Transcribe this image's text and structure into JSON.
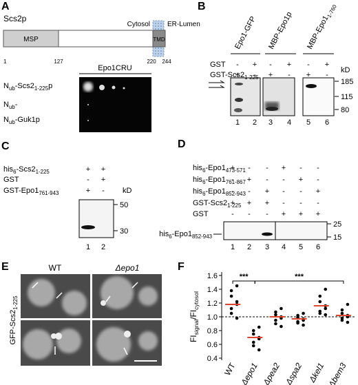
{
  "panels": {
    "A": {
      "letter": "A",
      "protein": "Scs2p",
      "domains": {
        "msp": "MSP",
        "tmd": "TMD"
      },
      "regions": [
        "Cytosol",
        "ER-Lumen"
      ],
      "positions": [
        "1",
        "127",
        "220",
        "244"
      ],
      "assay": "Epo1CRU",
      "rows": [
        [
          "N",
          "ub",
          "-Scs2",
          "1-225",
          "p"
        ],
        [
          "N",
          "ub",
          "-"
        ],
        [
          "N",
          "ub",
          "-Guk1p"
        ]
      ]
    },
    "B": {
      "letter": "B",
      "columns": [
        [
          "Epo1-GFP"
        ],
        [
          "MBP-Epo1p"
        ],
        [
          "MBP-Epo1",
          "1-760"
        ]
      ],
      "rows": [
        [
          "GST"
        ],
        [
          "GST-Scs2",
          "1-225"
        ]
      ],
      "signs": [
        [
          "-",
          "+",
          "-",
          "+",
          "-",
          "+"
        ],
        [
          "+",
          "-",
          "+",
          "-",
          "+",
          "-"
        ]
      ],
      "unit": "kD",
      "markers": [
        "185",
        "115",
        "80"
      ],
      "lanes": [
        "1",
        "2",
        "3",
        "4",
        "5",
        "6"
      ]
    },
    "C": {
      "letter": "C",
      "rows": [
        [
          "his",
          "6",
          "-Scs2",
          "1-225"
        ],
        [
          "GST"
        ],
        [
          "GST-Epo1",
          "761-943"
        ]
      ],
      "signs": [
        [
          "+",
          "+"
        ],
        [
          "-",
          "+"
        ],
        [
          "+",
          "-"
        ]
      ],
      "unit": "kD",
      "markers": [
        "50",
        "30"
      ],
      "lanes": [
        "1",
        "2"
      ]
    },
    "D": {
      "letter": "D",
      "rows": [
        [
          "his",
          "6",
          "-Epo1",
          "473-571"
        ],
        [
          "his",
          "6",
          "-Epo1",
          "761-867"
        ],
        [
          "his",
          "6",
          "-Epo1",
          "852-943"
        ],
        [
          "GST-Scs2",
          "1-225"
        ],
        [
          "GST"
        ]
      ],
      "signs": [
        [
          "+",
          "-",
          "-",
          "+",
          "-",
          "-"
        ],
        [
          "-",
          "+",
          "-",
          "-",
          "+",
          "-"
        ],
        [
          "-",
          "-",
          "+",
          "-",
          "-",
          "+"
        ],
        [
          "+",
          "+",
          "+",
          "-",
          "-",
          "-"
        ],
        [
          "-",
          "-",
          "-",
          "+",
          "+",
          "+"
        ]
      ],
      "band": [
        "his",
        "6",
        "-Epo1",
        "852-943"
      ],
      "markers": [
        "25",
        "15"
      ],
      "lanes": [
        "1",
        "2",
        "3",
        "4",
        "5",
        "6"
      ]
    },
    "E": {
      "letter": "E",
      "columns": [
        "WT",
        "Δepo1"
      ],
      "side": [
        "GFP-Scs2",
        "1-225"
      ]
    },
    "F": {
      "letter": "F",
      "ylabel": [
        "FI",
        "signal",
        "/FI",
        "cytosol"
      ],
      "ylim": [
        0.4,
        1.6
      ],
      "yticks": [
        {
          "value": 0.4,
          "label": "0.4"
        },
        {
          "value": 0.6,
          "label": "0.6"
        },
        {
          "value": 0.8,
          "label": "0.8"
        },
        {
          "value": 1.0,
          "label": "1.0"
        },
        {
          "value": 1.2,
          "label": "1.2"
        },
        {
          "value": 1.4,
          "label": "1.4"
        },
        {
          "value": 1.6,
          "label": "1.6"
        }
      ],
      "categories": [
        "WT",
        "Δepo1",
        "Δpea2",
        "Δspa2",
        "Δkel1",
        "Δbem3"
      ],
      "means": [
        1.18,
        0.7,
        1.0,
        0.97,
        1.16,
        1.02
      ],
      "points": [
        [
          1.45,
          1.38,
          1.3,
          1.22,
          1.18,
          1.12,
          1.05,
          0.98
        ],
        [
          0.85,
          0.8,
          0.75,
          0.7,
          0.68,
          0.63,
          0.58,
          0.52
        ],
        [
          1.12,
          1.07,
          1.03,
          1.0,
          0.98,
          0.95,
          0.9,
          0.86
        ],
        [
          1.05,
          1.02,
          0.99,
          0.97,
          0.95,
          0.93,
          0.91,
          0.88
        ],
        [
          1.4,
          1.3,
          1.22,
          1.16,
          1.12,
          1.08,
          1.05,
          1.03
        ],
        [
          1.18,
          1.1,
          1.05,
          1.02,
          1.0,
          0.98,
          0.95,
          0.92
        ]
      ],
      "significance": [
        "***",
        "***"
      ]
    }
  }
}
